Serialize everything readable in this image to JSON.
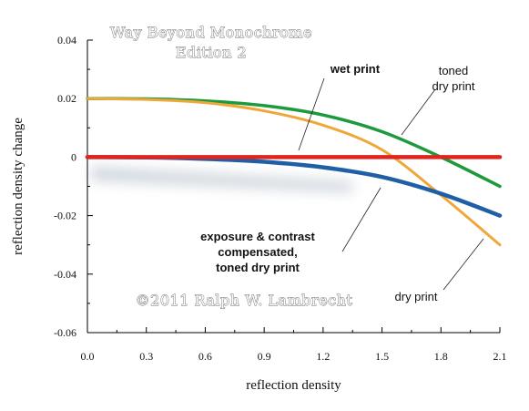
{
  "chart_data": {
    "type": "line",
    "xlabel": "reflection density",
    "ylabel": "reflection density change",
    "xlim": [
      0.0,
      2.1
    ],
    "ylim": [
      -0.06,
      0.04
    ],
    "x_ticks": [
      "0.0",
      "0.3",
      "0.6",
      "0.9",
      "1.2",
      "1.5",
      "1.8",
      "2.1"
    ],
    "y_ticks": [
      "0.04",
      "0.02",
      "0",
      "-0.02",
      "-0.04",
      "-0.06"
    ],
    "grid": false,
    "watermark": [
      "Way Beyond Monochrome",
      "Edition 2"
    ],
    "copyright": "©2011  Ralph W. Lambrecht",
    "series": [
      {
        "name": "wet print",
        "color": "#e0241e",
        "x": [
          0.0,
          0.3,
          0.6,
          0.9,
          1.2,
          1.5,
          1.8,
          2.1
        ],
        "y": [
          0,
          0,
          0,
          0,
          0,
          0,
          0,
          0
        ]
      },
      {
        "name": "toned dry print",
        "color": "#1c9a3c",
        "x": [
          0.0,
          0.3,
          0.6,
          0.9,
          1.2,
          1.5,
          1.8,
          2.1
        ],
        "y": [
          0.02,
          0.0199,
          0.0192,
          0.0176,
          0.0144,
          0.0087,
          0.0,
          -0.01
        ]
      },
      {
        "name": "dry print",
        "color": "#efa73a",
        "x": [
          0.0,
          0.3,
          0.6,
          0.9,
          1.2,
          1.5,
          1.8,
          2.1
        ],
        "y": [
          0.02,
          0.0197,
          0.0186,
          0.0158,
          0.0109,
          0.0025,
          -0.013,
          -0.03
        ]
      },
      {
        "name": "exposure & contrast compensated, toned dry print",
        "color": "#1f5fa6",
        "x": [
          0.0,
          0.3,
          0.6,
          0.9,
          1.2,
          1.5,
          1.8,
          2.1
        ],
        "y": [
          0.0,
          -0.0001,
          -0.0006,
          -0.0016,
          -0.0035,
          -0.0068,
          -0.0125,
          -0.02
        ]
      }
    ],
    "annotations": [
      {
        "text": [
          "wet print"
        ],
        "style": "bold"
      },
      {
        "text": [
          "toned",
          "dry print"
        ],
        "style": "normal"
      },
      {
        "text": [
          "dry print"
        ],
        "style": "normal"
      },
      {
        "text": [
          "exposure & contrast",
          "compensated,",
          "toned dry print"
        ],
        "style": "bold"
      }
    ]
  }
}
